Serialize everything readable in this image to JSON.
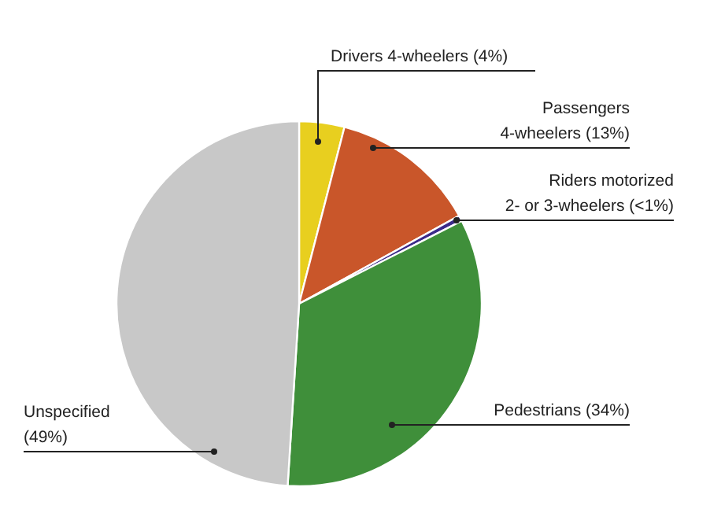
{
  "chart_data": {
    "type": "pie",
    "categories": [
      "Drivers 4-wheelers",
      "Passengers\n4-wheelers",
      "Riders motorized\n2- or 3-wheelers",
      "Pedestrians",
      "Unspecified\n"
    ],
    "values": [
      4,
      13,
      0.5,
      33.5,
      49
    ],
    "value_labels": [
      "(4%)",
      "(13%)",
      "(<1%)",
      "(34%)",
      "(49%)"
    ],
    "colors": [
      "#e8cf1f",
      "#c9562a",
      "#3b2a8a",
      "#3f8f3a",
      "#c8c8c8"
    ]
  }
}
